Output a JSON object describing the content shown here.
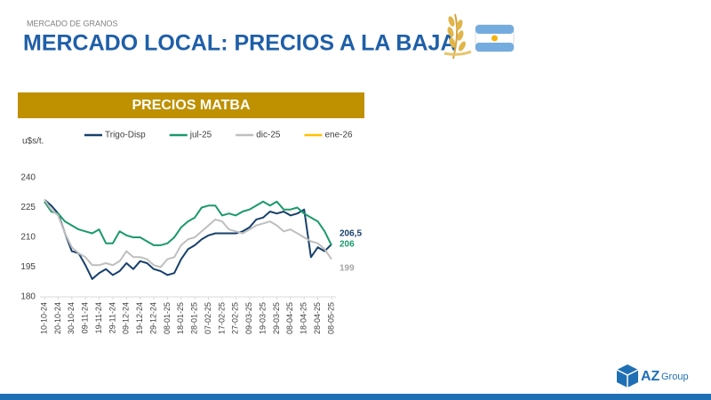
{
  "header": {
    "section": "MERCADO DE GRANOS",
    "title": "MERCADO LOCAL: PRECIOS A LA BAJA"
  },
  "banner": "PRECIOS MATBA",
  "logo": {
    "brand": "AZ",
    "suffix": "Group"
  },
  "chart_data": {
    "type": "line",
    "y_label": "u$s/t.",
    "categories": [
      "10-10-24",
      null,
      "20-10-24",
      null,
      "30-10-24",
      null,
      "09-11-24",
      null,
      "19-11-24",
      null,
      "29-11-24",
      null,
      "09-12-24",
      null,
      "19-12-24",
      null,
      "29-12-24",
      null,
      "08-01-25",
      null,
      "18-01-25",
      null,
      "28-01-25",
      null,
      "07-02-25",
      null,
      "17-02-25",
      null,
      "27-02-25",
      null,
      "09-03-25",
      null,
      "19-03-25",
      null,
      "29-03-25",
      null,
      "08-04-25",
      null,
      "18-04-25",
      null,
      "28-04-25",
      null,
      "08-05-25"
    ],
    "series": [
      {
        "name": "Trigo-Disp",
        "color": "#17406b",
        "values": [
          229,
          226,
          222,
          212,
          203,
          202,
          196,
          189,
          192,
          194,
          191,
          193,
          197,
          194,
          198,
          197,
          194,
          193,
          191,
          192,
          199,
          204,
          206,
          209,
          211,
          212,
          212,
          212,
          212,
          213,
          215,
          219,
          220,
          223,
          222,
          223,
          221,
          222,
          224,
          200,
          205,
          203,
          206.5
        ],
        "value_labels": [
          null,
          null,
          null,
          null,
          null,
          null,
          null,
          null,
          null,
          null,
          null,
          null,
          null,
          null,
          null,
          null,
          null,
          null,
          null,
          null,
          null,
          null,
          null,
          null,
          null,
          null,
          null,
          null,
          null,
          null,
          null,
          null,
          null,
          null,
          null,
          null,
          null,
          null,
          null,
          null,
          null,
          null,
          "206,5"
        ]
      },
      {
        "name": "jul-25",
        "color": "#1a9a6a",
        "values": [
          228,
          223,
          222,
          218,
          216,
          214,
          213,
          212,
          214,
          207,
          207,
          213,
          211,
          210,
          210,
          208,
          206,
          206,
          207,
          210,
          215,
          218,
          220,
          225,
          226,
          226,
          221,
          222,
          221,
          223,
          224,
          226,
          228,
          226,
          228,
          224,
          224,
          225,
          222,
          220,
          218,
          213,
          206
        ],
        "value_labels": [
          null,
          null,
          null,
          null,
          null,
          null,
          null,
          null,
          null,
          null,
          null,
          null,
          null,
          null,
          null,
          null,
          null,
          null,
          null,
          null,
          null,
          null,
          null,
          null,
          null,
          null,
          null,
          null,
          null,
          null,
          null,
          null,
          null,
          null,
          null,
          null,
          null,
          null,
          null,
          null,
          null,
          null,
          "206"
        ]
      },
      {
        "name": "dic-25",
        "color": "#bfbfbf",
        "values": [
          229,
          224,
          221,
          212,
          205,
          202,
          200,
          196,
          196,
          197,
          196,
          198,
          203,
          200,
          200,
          199,
          196,
          195,
          199,
          200,
          206,
          209,
          210,
          213,
          216,
          219,
          218,
          214,
          213,
          212,
          214,
          216,
          217,
          218,
          216,
          213,
          214,
          212,
          210,
          208,
          207,
          204,
          199
        ],
        "value_labels": [
          null,
          null,
          null,
          null,
          null,
          null,
          null,
          null,
          null,
          null,
          null,
          null,
          null,
          null,
          null,
          null,
          null,
          null,
          null,
          null,
          null,
          null,
          null,
          null,
          null,
          null,
          null,
          null,
          null,
          null,
          null,
          null,
          null,
          null,
          null,
          null,
          null,
          null,
          null,
          null,
          null,
          null,
          "199"
        ]
      },
      {
        "name": "ene-26",
        "color": "#ffc000",
        "values": [
          null,
          null,
          null,
          null,
          null,
          null,
          null,
          null,
          null,
          null,
          null,
          null,
          null,
          null,
          null,
          null,
          null,
          null,
          null,
          null,
          null,
          null,
          null,
          null,
          null,
          null,
          null,
          null,
          null,
          null,
          null,
          null,
          null,
          null,
          null,
          null,
          null,
          null,
          null,
          null,
          null,
          null,
          null
        ]
      }
    ],
    "ylim": [
      180,
      240
    ],
    "yticks": [
      180,
      195,
      210,
      225,
      240
    ],
    "grid": false,
    "legend": "top"
  }
}
